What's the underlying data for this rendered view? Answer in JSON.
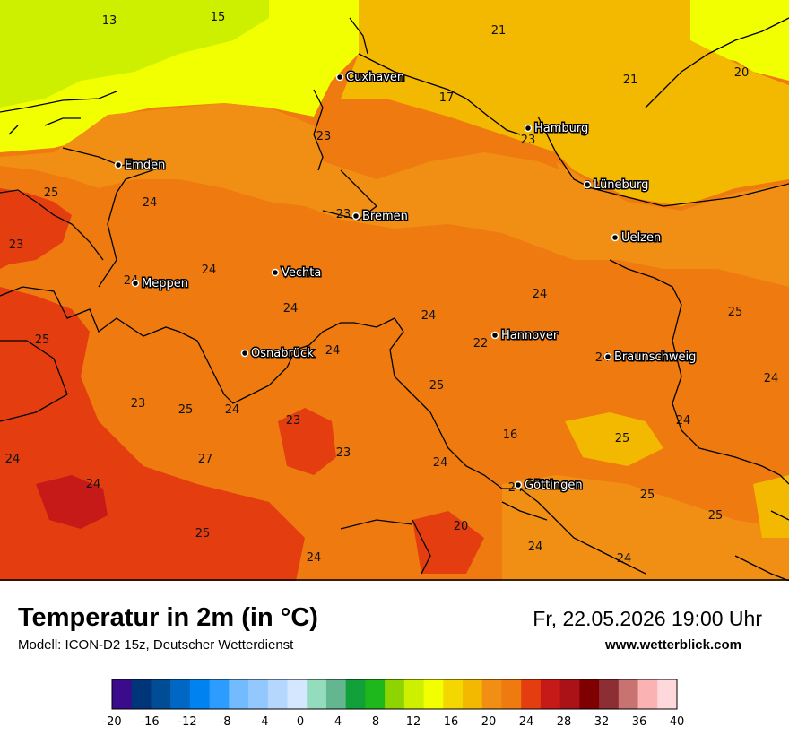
{
  "map": {
    "cities": [
      {
        "name": "Cuxhaven"
      },
      {
        "name": "Hamburg"
      },
      {
        "name": "Emden"
      },
      {
        "name": "Lüneburg"
      },
      {
        "name": "Bremen"
      },
      {
        "name": "Uelzen"
      },
      {
        "name": "Vechta"
      },
      {
        "name": "Meppen"
      },
      {
        "name": "Hannover"
      },
      {
        "name": "Osnabrück"
      },
      {
        "name": "Braunschweig"
      },
      {
        "name": "Göttingen"
      }
    ],
    "values": [
      13,
      15,
      21,
      20,
      21,
      17,
      23,
      23,
      22,
      25,
      24,
      23,
      23,
      24,
      24,
      24,
      24,
      24,
      25,
      25,
      22,
      24,
      24,
      24,
      23,
      25,
      24,
      25,
      23,
      24,
      16,
      25,
      23,
      24,
      27,
      24,
      24,
      24,
      25,
      25,
      20,
      25,
      24,
      24,
      24
    ]
  },
  "footer": {
    "title": "Temperatur in 2m (in °C)",
    "model": "Modell: ICON-D2 15z, Deutscher Wetterdienst",
    "datetime": "Fr, 22.05.2026 19:00 Uhr",
    "website": "www.wetterblick.com"
  },
  "legend": {
    "ticks": [
      "-20",
      "-16",
      "-12",
      "-8",
      "-4",
      "0",
      "4",
      "8",
      "12",
      "16",
      "20",
      "24",
      "28",
      "32",
      "36",
      "40"
    ],
    "colors": [
      "#3a0b8a",
      "#00357a",
      "#004d95",
      "#0068c4",
      "#0083f0",
      "#2d9cff",
      "#72bbff",
      "#93c8ff",
      "#b5d7ff",
      "#d5e7ff",
      "#93dcbd",
      "#63b68f",
      "#12a03a",
      "#1fb81c",
      "#8ed400",
      "#cdef00",
      "#f2ff00",
      "#f4d600",
      "#f3b800",
      "#f08f14",
      "#ee7a10",
      "#e33d10",
      "#c61a18",
      "#aa1218",
      "#7e0000",
      "#8c2e34",
      "#c97272",
      "#fbb2b2",
      "#ffd8dc"
    ]
  },
  "colors": {
    "sea_yellow": "#f2ff00",
    "sea_lime": "#cdef00",
    "land_orange": "#f08f14",
    "land_dark_orange": "#ee7a10",
    "land_red": "#e33d10",
    "land_darkred": "#c61a18"
  }
}
